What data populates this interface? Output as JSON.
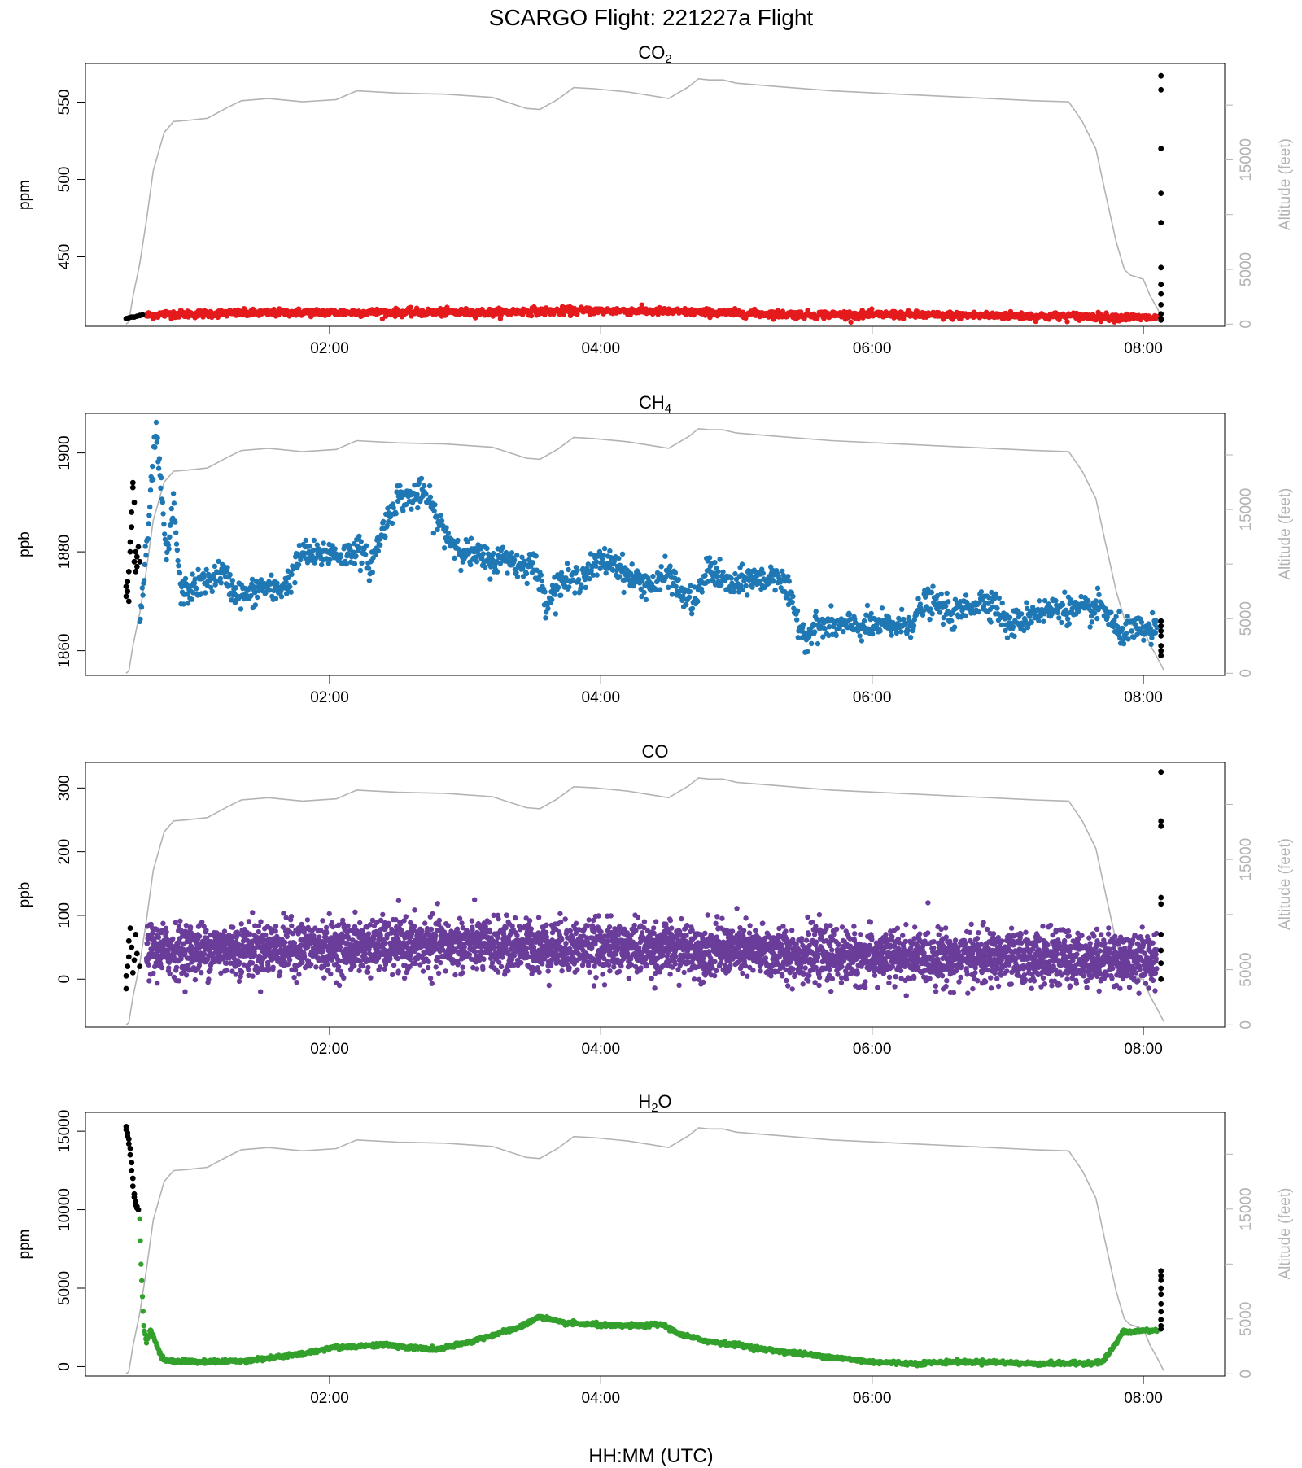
{
  "page": {
    "title": "SCARGO Flight: 221227a  Flight",
    "xlabel": "HH:MM (UTC)"
  },
  "style": {
    "altitude_color": "#b3b3b3",
    "ground_color": "#000000"
  },
  "chart_data": [
    {
      "type": "scatter",
      "title": "CO",
      "title_sub": "2",
      "ylabel": "ppm",
      "y2label": "Altitude (feet)",
      "color": "#e41a1c",
      "xlim": [
        0.2,
        8.6
      ],
      "ylim": [
        405,
        575
      ],
      "yticks": [
        450,
        500,
        550
      ],
      "xticks": [
        "02:00",
        "04:00",
        "06:00",
        "08:00"
      ],
      "xtick_values": [
        2,
        4,
        6,
        8
      ],
      "y2ticks": [
        0,
        5000,
        15000
      ],
      "profile": {
        "x": [
          0.65,
          0.8,
          1.0,
          1.25,
          1.5,
          1.75,
          2.0,
          2.25,
          2.5,
          2.75,
          3.0,
          3.25,
          3.5,
          3.55,
          3.75,
          4.0,
          4.25,
          4.5,
          4.75,
          5.0,
          5.25,
          5.5,
          5.75,
          6.0,
          6.25,
          6.5,
          6.75,
          7.0,
          7.25,
          7.5,
          7.75,
          8.0,
          8.1
        ],
        "y": [
          412,
          413,
          413,
          413.5,
          413.5,
          414,
          414,
          414,
          414,
          414,
          414,
          414,
          415,
          414.5,
          415,
          415,
          415,
          414.5,
          414,
          413.5,
          413,
          412.5,
          412.5,
          412.5,
          412.5,
          412,
          412,
          412,
          411.5,
          411.5,
          411,
          410.5,
          410.5
        ],
        "spread": 1.2,
        "points": 1500
      },
      "ground_points": {
        "x": [
          0.5,
          0.52,
          0.54,
          0.56,
          0.58,
          0.6,
          0.62,
          8.13,
          8.13,
          8.13,
          8.13,
          8.13,
          8.13,
          8.13,
          8.13,
          8.13,
          8.13,
          8.13,
          8.13
        ],
        "y": [
          410,
          410.5,
          411,
          411,
          411.5,
          412,
          412.5,
          567,
          558,
          520,
          491,
          472,
          443,
          432,
          426,
          419,
          413,
          410,
          409
        ]
      }
    },
    {
      "type": "scatter",
      "title": "CH",
      "title_sub": "4",
      "ylabel": "ppb",
      "y2label": "Altitude (feet)",
      "color": "#1f78b4",
      "xlim": [
        0.2,
        8.6
      ],
      "ylim": [
        1855,
        1908
      ],
      "yticks": [
        1860,
        1880,
        1900
      ],
      "xticks": [
        "02:00",
        "04:00",
        "06:00",
        "08:00"
      ],
      "xtick_values": [
        2,
        4,
        6,
        8
      ],
      "y2ticks": [
        0,
        5000,
        15000
      ],
      "profile": {
        "x": [
          0.6,
          0.65,
          0.72,
          0.8,
          0.85,
          0.9,
          0.95,
          1.0,
          1.1,
          1.2,
          1.3,
          1.4,
          1.5,
          1.6,
          1.7,
          1.8,
          1.9,
          2.0,
          2.1,
          2.2,
          2.3,
          2.4,
          2.5,
          2.6,
          2.7,
          2.8,
          2.9,
          3.0,
          3.1,
          3.2,
          3.3,
          3.4,
          3.5,
          3.6,
          3.7,
          3.8,
          3.9,
          4.0,
          4.1,
          4.2,
          4.3,
          4.4,
          4.5,
          4.6,
          4.7,
          4.8,
          4.9,
          5.0,
          5.1,
          5.2,
          5.3,
          5.4,
          5.5,
          5.6,
          5.7,
          5.8,
          5.9,
          6.0,
          6.1,
          6.2,
          6.3,
          6.4,
          6.5,
          6.6,
          6.7,
          6.8,
          6.9,
          7.0,
          7.1,
          7.2,
          7.3,
          7.4,
          7.5,
          7.6,
          7.7,
          7.8,
          7.9,
          8.0,
          8.1
        ],
        "y": [
          1866,
          1880,
          1905,
          1878,
          1890,
          1872,
          1872,
          1873,
          1874,
          1876,
          1872,
          1871,
          1873,
          1872,
          1874,
          1880,
          1879,
          1880,
          1879,
          1881,
          1877,
          1885,
          1891,
          1891,
          1892,
          1886,
          1882,
          1880,
          1879,
          1878,
          1879,
          1877,
          1878,
          1870,
          1874,
          1874,
          1876,
          1878,
          1878,
          1875,
          1874,
          1873,
          1876,
          1871,
          1870,
          1877,
          1874,
          1873,
          1875,
          1874,
          1876,
          1870,
          1863,
          1865,
          1865,
          1865,
          1865,
          1865,
          1865,
          1865,
          1866,
          1870,
          1869,
          1867,
          1869,
          1870,
          1870,
          1865,
          1866,
          1868,
          1868,
          1869,
          1868,
          1868,
          1869,
          1864,
          1864,
          1864,
          1864
        ],
        "spread": 1.4,
        "points": 1600
      },
      "ground_points": {
        "x": [
          0.5,
          0.5,
          0.51,
          0.51,
          0.52,
          0.52,
          0.53,
          0.53,
          0.54,
          0.54,
          0.55,
          0.55,
          0.56,
          0.56,
          0.57,
          0.57,
          0.58,
          0.58,
          0.59,
          0.6,
          8.13,
          8.13,
          8.13,
          8.13,
          8.13,
          8.13,
          8.13
        ],
        "y": [
          1871,
          1873,
          1872,
          1874,
          1870,
          1876,
          1880,
          1882,
          1885,
          1888,
          1893,
          1894,
          1890,
          1878,
          1876,
          1880,
          1879,
          1877,
          1881,
          1878,
          1866,
          1865,
          1864,
          1863,
          1861,
          1860,
          1859
        ]
      }
    },
    {
      "type": "scatter",
      "title": "CO",
      "title_sub": "",
      "ylabel": "ppb",
      "y2label": "Altitude (feet)",
      "color": "#6a3d9a",
      "xlim": [
        0.2,
        8.6
      ],
      "ylim": [
        -75,
        340
      ],
      "yticks": [
        0,
        100,
        200,
        300
      ],
      "xticks": [
        "02:00",
        "04:00",
        "06:00",
        "08:00"
      ],
      "xtick_values": [
        2,
        4,
        6,
        8
      ],
      "y2ticks": [
        0,
        5000,
        15000
      ],
      "profile": {
        "x": [
          0.65,
          1.0,
          1.5,
          2.0,
          2.5,
          3.0,
          3.5,
          4.0,
          4.5,
          5.0,
          5.5,
          6.0,
          6.5,
          7.0,
          7.5,
          8.0,
          8.1
        ],
        "y": [
          45,
          47,
          48,
          50,
          52,
          53,
          52,
          50,
          48,
          45,
          38,
          35,
          34,
          34,
          33,
          32,
          32
        ],
        "spread": 20,
        "points": 4500
      },
      "ground_points": {
        "x": [
          0.5,
          0.5,
          0.51,
          0.52,
          0.52,
          0.53,
          0.54,
          0.55,
          0.56,
          0.57,
          0.58,
          0.6,
          8.13,
          8.13,
          8.13,
          8.13,
          8.13,
          8.13,
          8.13,
          8.13,
          8.13
        ],
        "y": [
          -15,
          5,
          20,
          35,
          60,
          80,
          50,
          10,
          30,
          70,
          40,
          20,
          325,
          248,
          240,
          128,
          118,
          70,
          45,
          25,
          0
        ]
      }
    },
    {
      "type": "scatter",
      "title": "H",
      "title_sub": "2",
      "title_suffix": "O",
      "ylabel": "ppm",
      "y2label": "Altitude (feet)",
      "color": "#33a02c",
      "xlim": [
        0.2,
        8.6
      ],
      "ylim": [
        -600,
        16200
      ],
      "yticks": [
        0,
        5000,
        10000,
        15000
      ],
      "xticks": [
        "02:00",
        "04:00",
        "06:00",
        "08:00"
      ],
      "xtick_values": [
        2,
        4,
        6,
        8
      ],
      "y2ticks": [
        0,
        5000,
        15000
      ],
      "profile": {
        "x": [
          0.6,
          0.61,
          0.62,
          0.63,
          0.65,
          0.68,
          0.72,
          0.76,
          0.8,
          0.9,
          1.0,
          1.2,
          1.4,
          1.6,
          1.8,
          2.0,
          2.2,
          2.4,
          2.6,
          2.8,
          3.0,
          3.2,
          3.4,
          3.55,
          3.7,
          3.9,
          4.1,
          4.3,
          4.45,
          4.6,
          4.8,
          5.0,
          5.2,
          5.4,
          5.6,
          5.8,
          6.0,
          6.3,
          6.6,
          6.9,
          7.1,
          7.3,
          7.5,
          7.7,
          7.8,
          7.85,
          7.9,
          8.0,
          8.1
        ],
        "y": [
          9500,
          6500,
          4500,
          2600,
          1500,
          2400,
          1500,
          600,
          400,
          350,
          300,
          320,
          400,
          600,
          800,
          1200,
          1300,
          1400,
          1200,
          1100,
          1500,
          2000,
          2500,
          3200,
          2800,
          2700,
          2600,
          2600,
          2700,
          2000,
          1600,
          1400,
          1100,
          900,
          700,
          500,
          300,
          200,
          300,
          300,
          200,
          200,
          200,
          300,
          1500,
          2200,
          2200,
          2300,
          2300
        ],
        "spread": 60,
        "points": 1500
      },
      "ground_points": {
        "x": [
          0.5,
          0.5,
          0.51,
          0.51,
          0.52,
          0.52,
          0.53,
          0.53,
          0.54,
          0.54,
          0.55,
          0.55,
          0.56,
          0.56,
          0.57,
          0.57,
          0.58,
          0.58,
          0.59,
          8.13,
          8.13,
          8.13,
          8.13,
          8.13,
          8.13,
          8.13,
          8.13,
          8.13,
          8.13
        ],
        "y": [
          15300,
          15100,
          14900,
          14700,
          14500,
          14200,
          13900,
          13500,
          13000,
          12500,
          12000,
          11500,
          11000,
          10800,
          10500,
          10300,
          10200,
          10100,
          10000,
          6100,
          5800,
          5500,
          5000,
          4600,
          4000,
          3500,
          3000,
          2600,
          2400
        ]
      }
    }
  ],
  "altitude_profile": {
    "ylim": [
      -200,
      23800
    ],
    "x": [
      0.5,
      0.52,
      0.55,
      0.6,
      0.65,
      0.7,
      0.78,
      0.85,
      0.95,
      1.1,
      1.25,
      1.35,
      1.55,
      1.8,
      2.05,
      2.2,
      2.5,
      2.85,
      3.2,
      3.45,
      3.55,
      3.68,
      3.8,
      3.95,
      4.2,
      4.5,
      4.65,
      4.72,
      4.8,
      4.9,
      5.0,
      5.3,
      5.7,
      6.2,
      6.7,
      7.2,
      7.45,
      7.55,
      7.65,
      7.72,
      7.8,
      7.86,
      7.9,
      7.95,
      8.0,
      8.02,
      8.05,
      8.1,
      8.15
    ],
    "y": [
      0,
      200,
      2500,
      5500,
      9500,
      14000,
      17500,
      18500,
      18600,
      18800,
      19800,
      20400,
      20600,
      20300,
      20500,
      21300,
      21100,
      21000,
      20700,
      19700,
      19600,
      20500,
      21600,
      21500,
      21200,
      20600,
      21700,
      22400,
      22300,
      22300,
      22000,
      21700,
      21300,
      21000,
      20700,
      20400,
      20300,
      18500,
      16000,
      12000,
      7500,
      5000,
      4500,
      4300,
      4100,
      3500,
      2600,
      1500,
      300
    ]
  }
}
